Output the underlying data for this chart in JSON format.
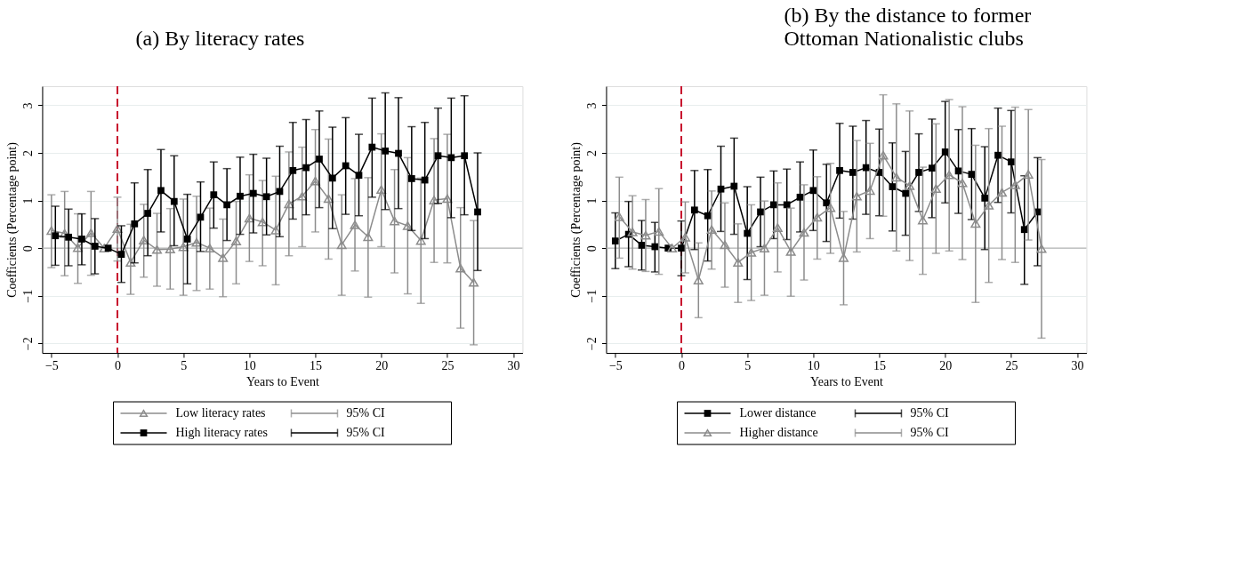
{
  "chart_data": [
    {
      "type": "line",
      "title": "(a) By literacy rates",
      "xlabel": "Years to Event",
      "ylabel": "Coefficients (Percentage point)",
      "xlim": [
        -5.7,
        30.7
      ],
      "ylim": [
        -2.2,
        3.4
      ],
      "xticks": [
        -5,
        0,
        5,
        10,
        15,
        20,
        25,
        30
      ],
      "yticks": [
        -2,
        -1,
        0,
        1,
        2,
        3
      ],
      "grid": "y",
      "legend": "bottom",
      "annotations": [
        "95% CI",
        "95% CI"
      ],
      "ref_lines": [
        {
          "axis": "x",
          "value": 0,
          "color": "#c8102e",
          "line_style": "dashed"
        },
        {
          "axis": "y",
          "value": 0,
          "color": "#b4b4b4",
          "line_style": "solid"
        }
      ],
      "series": [
        {
          "name": "Low literacy rates",
          "color": "#8c8c8c",
          "marker": "triangle",
          "line_style": "solid",
          "x": [
            -5,
            -4,
            -3,
            -2,
            -1,
            0,
            1,
            2,
            3,
            4,
            5,
            6,
            7,
            8,
            9,
            10,
            11,
            12,
            13,
            14,
            15,
            16,
            17,
            18,
            19,
            20,
            21,
            22,
            23,
            24,
            25,
            26,
            27
          ],
          "values": [
            0.37,
            0.31,
            0.01,
            0.32,
            0,
            0.41,
            -0.3,
            0.17,
            -0.03,
            -0.02,
            0.03,
            0.12,
            0.0,
            -0.2,
            0.15,
            0.63,
            0.55,
            0.38,
            0.93,
            1.09,
            1.41,
            1.04,
            0.07,
            0.49,
            0.24,
            1.23,
            0.57,
            0.47,
            0.16,
            1.01,
            1.04,
            -0.42,
            -0.72
          ],
          "errors": [
            [
              -0.41,
              1.12
            ],
            [
              -0.58,
              1.19
            ],
            [
              -0.74,
              0.72
            ],
            [
              -0.57,
              1.19
            ],
            null,
            [
              -0.27,
              1.07
            ],
            [
              -0.97,
              0.5
            ],
            [
              -0.61,
              0.92
            ],
            [
              -0.8,
              0.73
            ],
            [
              -0.86,
              0.83
            ],
            [
              -0.99,
              1.03
            ],
            [
              -0.89,
              1.09
            ],
            [
              -0.86,
              0.84
            ],
            [
              -1.02,
              0.61
            ],
            [
              -0.75,
              0.98
            ],
            [
              -0.28,
              1.54
            ],
            [
              -0.37,
              1.42
            ],
            [
              -0.77,
              1.51
            ],
            [
              -0.16,
              2.02
            ],
            [
              0.03,
              2.12
            ],
            [
              0.34,
              2.49
            ],
            [
              -0.23,
              2.29
            ],
            [
              -0.99,
              1.12
            ],
            [
              -0.48,
              1.46
            ],
            [
              -1.03,
              1.48
            ],
            [
              0.03,
              2.4
            ],
            [
              -0.52,
              1.65
            ],
            [
              -0.96,
              1.9
            ],
            [
              -1.16,
              1.47
            ],
            [
              -0.3,
              2.3
            ],
            [
              -0.31,
              2.39
            ],
            [
              -1.68,
              0.85
            ],
            [
              -2.03,
              0.58
            ]
          ]
        },
        {
          "name": "High literacy rates",
          "color": "#000000",
          "marker": "square",
          "line_style": "solid",
          "x": [
            -4.7,
            -3.7,
            -2.7,
            -1.7,
            -0.7,
            0.3,
            1.3,
            2.3,
            3.3,
            4.3,
            5.3,
            6.3,
            7.3,
            8.3,
            9.3,
            10.3,
            11.3,
            12.3,
            13.3,
            14.3,
            15.3,
            16.3,
            17.3,
            18.3,
            19.3,
            20.3,
            21.3,
            22.3,
            23.3,
            24.3,
            25.3,
            26.3,
            27.3
          ],
          "values": [
            0.26,
            0.23,
            0.19,
            0.04,
            0,
            -0.13,
            0.51,
            0.73,
            1.21,
            0.98,
            0.19,
            0.65,
            1.12,
            0.91,
            1.09,
            1.15,
            1.08,
            1.19,
            1.63,
            1.69,
            1.87,
            1.47,
            1.73,
            1.53,
            2.12,
            2.04,
            1.99,
            1.46,
            1.43,
            1.94,
            1.9,
            1.94,
            0.76
          ],
          "errors": [
            [
              -0.36,
              0.88
            ],
            [
              -0.37,
              0.82
            ],
            [
              -0.35,
              0.72
            ],
            [
              -0.54,
              0.62
            ],
            null,
            [
              -0.72,
              0.47
            ],
            [
              -0.31,
              1.37
            ],
            [
              -0.16,
              1.65
            ],
            [
              0.34,
              2.07
            ],
            [
              0.05,
              1.94
            ],
            [
              -0.75,
              1.13
            ],
            [
              -0.07,
              1.39
            ],
            [
              0.42,
              1.81
            ],
            [
              0.16,
              1.67
            ],
            [
              0.29,
              1.91
            ],
            [
              0.32,
              1.97
            ],
            [
              0.28,
              1.89
            ],
            [
              0.24,
              2.14
            ],
            [
              0.61,
              2.64
            ],
            [
              0.7,
              2.7
            ],
            [
              0.85,
              2.88
            ],
            [
              0.41,
              2.54
            ],
            [
              0.71,
              2.74
            ],
            [
              0.68,
              2.39
            ],
            [
              1.07,
              3.15
            ],
            [
              0.81,
              3.26
            ],
            [
              0.83,
              3.16
            ],
            [
              0.37,
              2.55
            ],
            [
              0.2,
              2.64
            ],
            [
              0.94,
              2.94
            ],
            [
              0.64,
              3.15
            ],
            [
              0.7,
              3.2
            ],
            [
              -0.47,
              2.0
            ]
          ]
        }
      ]
    },
    {
      "type": "line",
      "title": "(b) By the distance to former Ottoman Nationalistic clubs",
      "xlabel": "Years to Event",
      "ylabel": "Coefficients (Percentage point)",
      "xlim": [
        -5.7,
        30.7
      ],
      "ylim": [
        -2.2,
        3.4
      ],
      "xticks": [
        -5,
        0,
        5,
        10,
        15,
        20,
        25,
        30
      ],
      "yticks": [
        -2,
        -1,
        0,
        1,
        2,
        3
      ],
      "grid": "y",
      "legend": "bottom",
      "annotations": [
        "95% CI",
        "95% CI"
      ],
      "ref_lines": [
        {
          "axis": "x",
          "value": 0,
          "color": "#c8102e",
          "line_style": "dashed"
        },
        {
          "axis": "y",
          "value": 0,
          "color": "#b4b4b4",
          "line_style": "solid"
        }
      ],
      "series": [
        {
          "name": "Lower distance",
          "color": "#000000",
          "marker": "square",
          "line_style": "solid",
          "x": [
            -5,
            -4,
            -3,
            -2,
            -1,
            0,
            1,
            2,
            3,
            4,
            5,
            6,
            7,
            8,
            9,
            10,
            11,
            12,
            13,
            14,
            15,
            16,
            17,
            18,
            19,
            20,
            21,
            22,
            23,
            24,
            25,
            26,
            27
          ],
          "values": [
            0.15,
            0.29,
            0.06,
            0.03,
            0,
            0,
            0.8,
            0.68,
            1.24,
            1.3,
            0.31,
            0.76,
            0.91,
            0.91,
            1.07,
            1.21,
            0.95,
            1.63,
            1.59,
            1.69,
            1.59,
            1.29,
            1.15,
            1.59,
            1.68,
            2.02,
            1.62,
            1.55,
            1.05,
            1.95,
            1.81,
            0.39,
            0.76
          ],
          "errors": [
            [
              -0.43,
              0.74
            ],
            [
              -0.39,
              0.98
            ],
            [
              -0.46,
              0.58
            ],
            [
              -0.5,
              0.54
            ],
            null,
            [
              -0.58,
              0.57
            ],
            [
              -0.03,
              1.63
            ],
            [
              -0.27,
              1.65
            ],
            [
              0.35,
              2.14
            ],
            [
              0.29,
              2.31
            ],
            [
              -0.66,
              1.29
            ],
            [
              0.03,
              1.49
            ],
            [
              0.2,
              1.62
            ],
            [
              0.18,
              1.66
            ],
            [
              0.34,
              1.81
            ],
            [
              0.37,
              2.06
            ],
            [
              0.14,
              1.76
            ],
            [
              0.63,
              2.62
            ],
            [
              0.61,
              2.56
            ],
            [
              0.71,
              2.68
            ],
            [
              0.68,
              2.5
            ],
            [
              0.36,
              2.21
            ],
            [
              0.27,
              2.03
            ],
            [
              0.77,
              2.4
            ],
            [
              0.64,
              2.71
            ],
            [
              0.95,
              3.08
            ],
            [
              0.73,
              2.49
            ],
            [
              0.6,
              2.51
            ],
            [
              -0.03,
              2.13
            ],
            [
              0.96,
              2.94
            ],
            [
              0.74,
              2.89
            ],
            [
              -0.76,
              1.52
            ],
            [
              -0.37,
              1.9
            ]
          ]
        },
        {
          "name": "Higher distance",
          "color": "#8c8c8c",
          "marker": "triangle",
          "line_style": "solid",
          "x": [
            -4.7,
            -3.7,
            -2.7,
            -1.7,
            -0.7,
            0.3,
            1.3,
            2.3,
            3.3,
            4.3,
            5.3,
            6.3,
            7.3,
            8.3,
            9.3,
            10.3,
            11.3,
            12.3,
            13.3,
            14.3,
            15.3,
            16.3,
            17.3,
            18.3,
            19.3,
            20.3,
            21.3,
            22.3,
            23.3,
            24.3,
            25.3,
            26.3,
            27.3
          ],
          "values": [
            0.66,
            0.34,
            0.27,
            0.35,
            0,
            0.23,
            -0.67,
            0.39,
            0.07,
            -0.3,
            -0.09,
            0.0,
            0.43,
            -0.07,
            0.33,
            0.65,
            0.85,
            -0.2,
            1.09,
            1.21,
            1.95,
            1.49,
            1.31,
            0.59,
            1.25,
            1.54,
            1.37,
            0.52,
            0.9,
            1.17,
            1.33,
            1.55,
            -0.01
          ],
          "errors": [
            [
              -0.21,
              1.49
            ],
            [
              -0.44,
              1.1
            ],
            [
              -0.49,
              1.02
            ],
            [
              -0.55,
              1.25
            ],
            null,
            [
              -0.52,
              0.97
            ],
            [
              -1.46,
              0.11
            ],
            [
              -0.44,
              1.2
            ],
            [
              -0.82,
              0.95
            ],
            [
              -1.14,
              0.51
            ],
            [
              -1.1,
              0.91
            ],
            [
              -0.99,
              0.99
            ],
            [
              -0.5,
              1.37
            ],
            [
              -1.01,
              0.84
            ],
            [
              -0.67,
              1.33
            ],
            [
              -0.23,
              1.5
            ],
            [
              -0.11,
              1.78
            ],
            [
              -1.19,
              0.77
            ],
            [
              -0.08,
              2.26
            ],
            [
              0.2,
              2.2
            ],
            [
              0.67,
              3.22
            ],
            [
              -0.06,
              3.03
            ],
            [
              -0.26,
              2.88
            ],
            [
              -0.55,
              1.7
            ],
            [
              -0.11,
              2.61
            ],
            [
              -0.06,
              3.12
            ],
            [
              -0.24,
              2.97
            ],
            [
              -1.14,
              2.16
            ],
            [
              -0.72,
              2.51
            ],
            [
              -0.24,
              2.56
            ],
            [
              -0.3,
              2.96
            ],
            [
              0.17,
              2.91
            ],
            [
              -1.89,
              1.86
            ]
          ]
        }
      ]
    }
  ]
}
